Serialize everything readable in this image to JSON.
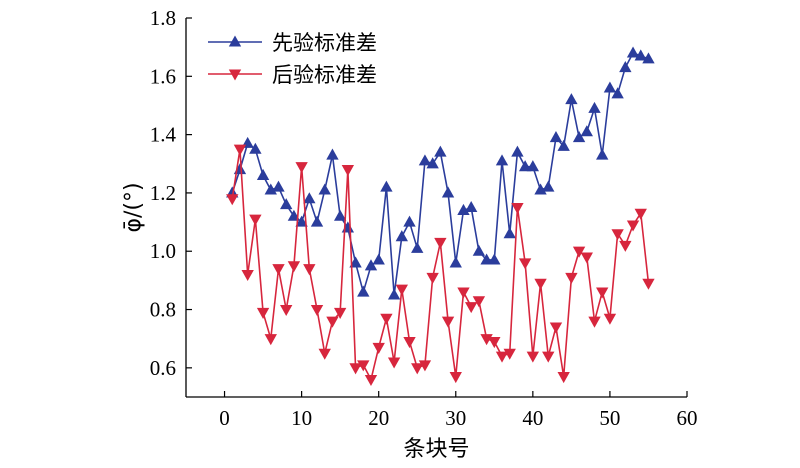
{
  "chart_data": {
    "type": "line",
    "title": "",
    "xlabel": "条块号",
    "ylabel": "φ̄/(°)",
    "xlim": [
      -5,
      60
    ],
    "ylim": [
      0.5,
      1.8
    ],
    "xticks": [
      0,
      10,
      20,
      30,
      40,
      50,
      60
    ],
    "yticks": [
      0.6,
      0.8,
      1.0,
      1.2,
      1.4,
      1.6,
      1.8
    ],
    "xtick_labels": [
      "0",
      "10",
      "20",
      "30",
      "40",
      "50",
      "60"
    ],
    "ytick_labels": [
      "0.6",
      "0.8",
      "1.0",
      "1.2",
      "1.4",
      "1.6",
      "1.8"
    ],
    "grid": false,
    "legend_position": "top-left",
    "x": [
      1,
      2,
      3,
      4,
      5,
      6,
      7,
      8,
      9,
      10,
      11,
      12,
      13,
      14,
      15,
      16,
      17,
      18,
      19,
      20,
      21,
      22,
      23,
      24,
      25,
      26,
      27,
      28,
      29,
      30,
      31,
      32,
      33,
      34,
      35,
      36,
      37,
      38,
      39,
      40,
      41,
      42,
      43,
      44,
      45,
      46,
      47,
      48,
      49,
      50,
      51,
      52,
      53,
      54,
      55
    ],
    "series": [
      {
        "name": "先验标准差",
        "color": "#2b3d9c",
        "marker": "triangle-up",
        "values": [
          1.2,
          1.28,
          1.37,
          1.35,
          1.26,
          1.21,
          1.22,
          1.16,
          1.12,
          1.1,
          1.18,
          1.1,
          1.21,
          1.33,
          1.12,
          1.08,
          0.96,
          0.86,
          0.95,
          0.97,
          1.22,
          0.85,
          1.05,
          1.1,
          1.01,
          1.31,
          1.3,
          1.34,
          1.2,
          0.96,
          1.14,
          1.15,
          1.0,
          0.97,
          0.97,
          1.31,
          1.06,
          1.34,
          1.29,
          1.29,
          1.21,
          1.22,
          1.39,
          1.36,
          1.52,
          1.39,
          1.41,
          1.49,
          1.33,
          1.56,
          1.54,
          1.63,
          1.68,
          1.67,
          1.66
        ]
      },
      {
        "name": "后验标准差",
        "color": "#d7263d",
        "marker": "triangle-down",
        "values": [
          1.18,
          1.35,
          0.92,
          1.11,
          0.79,
          0.7,
          0.94,
          0.8,
          0.95,
          1.29,
          0.94,
          0.8,
          0.65,
          0.76,
          0.79,
          1.28,
          0.6,
          0.61,
          0.56,
          0.67,
          0.77,
          0.62,
          0.87,
          0.69,
          0.6,
          0.61,
          0.91,
          1.03,
          0.76,
          0.57,
          0.86,
          0.81,
          0.83,
          0.7,
          0.69,
          0.64,
          0.65,
          1.15,
          0.96,
          0.64,
          0.89,
          0.64,
          0.74,
          0.57,
          0.91,
          1.0,
          0.98,
          0.76,
          0.86,
          0.77,
          1.06,
          1.02,
          1.09,
          1.13,
          0.89
        ]
      }
    ]
  }
}
